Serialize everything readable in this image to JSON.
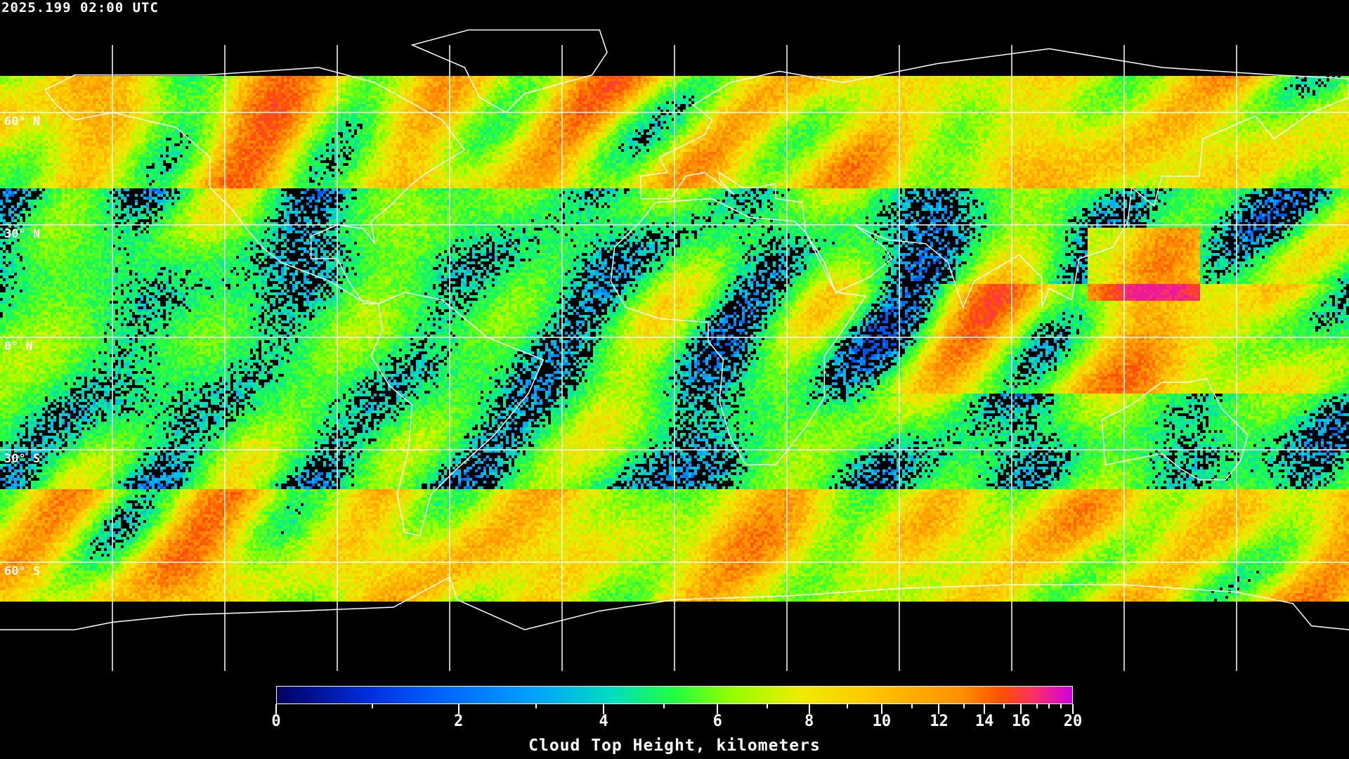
{
  "header": {
    "timestamp": "2025.199 02:00 UTC"
  },
  "map": {
    "projection": "equirectangular",
    "graticule_spacing_deg": 30,
    "lat_labels": [
      "60° N",
      "30° N",
      "0° N",
      "30° S",
      "60° S"
    ],
    "coastline_color": "#ffffff",
    "clear_sky_color": "#000000"
  },
  "colorbar": {
    "title": "Cloud Top Height, kilometers",
    "min": 0,
    "max": 20,
    "major_ticks": [
      "0",
      "2",
      "4",
      "6",
      "8",
      "10",
      "12",
      "14",
      "16",
      "20"
    ],
    "minor_tick_values": [
      1,
      3,
      5,
      7,
      9,
      11,
      13,
      15,
      17,
      18,
      19
    ],
    "colors": [
      "#000060",
      "#0030e0",
      "#00a0ff",
      "#00dcc0",
      "#20ff40",
      "#90ff00",
      "#f0ec00",
      "#ffc000",
      "#ff9000",
      "#ff5000",
      "#ff3060",
      "#d000e0"
    ]
  }
}
